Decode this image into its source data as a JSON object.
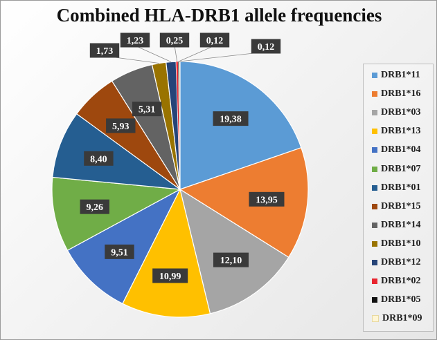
{
  "chart_data": {
    "type": "pie",
    "title": "Combined HLA-DRB1 allele frequencies",
    "legend_position": "right",
    "slices": [
      {
        "label": "DRB1*11",
        "value": 19.38,
        "display": "19,38",
        "color": "#5B9BD5"
      },
      {
        "label": "DRB1*16",
        "value": 13.95,
        "display": "13,95",
        "color": "#ED7D31"
      },
      {
        "label": "DRB1*03",
        "value": 12.1,
        "display": "12,10",
        "color": "#A5A5A5"
      },
      {
        "label": "DRB1*13",
        "value": 10.99,
        "display": "10,99",
        "color": "#FFC000"
      },
      {
        "label": "DRB1*04",
        "value": 9.51,
        "display": "9,51",
        "color": "#4472C4"
      },
      {
        "label": "DRB1*07",
        "value": 9.26,
        "display": "9,26",
        "color": "#70AD47"
      },
      {
        "label": "DRB1*01",
        "value": 8.4,
        "display": "8,40",
        "color": "#255E91"
      },
      {
        "label": "DRB1*15",
        "value": 5.93,
        "display": "5,93",
        "color": "#9E480E"
      },
      {
        "label": "DRB1*14",
        "value": 5.31,
        "display": "5,31",
        "color": "#636363"
      },
      {
        "label": "DRB1*10",
        "value": 1.73,
        "display": "1,73",
        "color": "#997300"
      },
      {
        "label": "DRB1*12",
        "value": 1.23,
        "display": "1,23",
        "color": "#264478"
      },
      {
        "label": "DRB1*02",
        "value": 0.25,
        "display": "0,25",
        "color": "#E8252F"
      },
      {
        "label": "DRB1*05",
        "value": 0.12,
        "display": "0,12",
        "color": "#111111"
      },
      {
        "label": "DRB1*09",
        "value": 0.12,
        "display": "0,12",
        "color": "#FFF6D5"
      }
    ]
  }
}
